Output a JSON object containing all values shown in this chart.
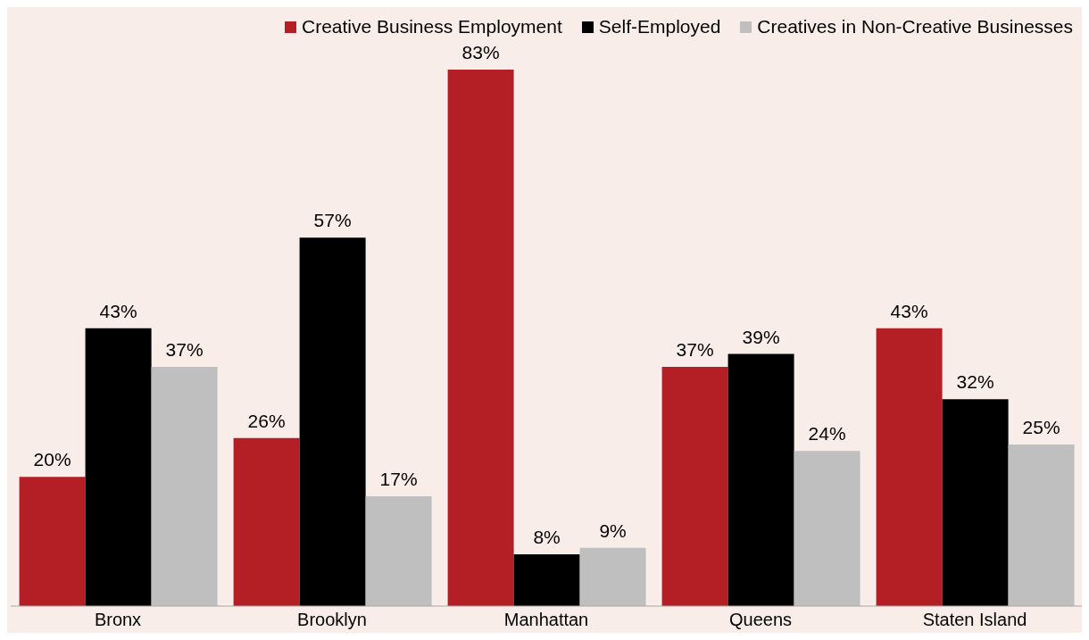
{
  "chart_data": {
    "type": "bar",
    "categories": [
      "Bronx",
      "Brooklyn",
      "Manhattan",
      "Queens",
      "Staten Island"
    ],
    "series": [
      {
        "name": "Creative Business Employment",
        "color": "#b31f24",
        "values": [
          20,
          26,
          83,
          37,
          43
        ],
        "value_labels": [
          "20%",
          "26%",
          "83%",
          "37%",
          "43%"
        ]
      },
      {
        "name": "Self-Employed",
        "color": "#000000",
        "values": [
          43,
          57,
          8,
          39,
          32
        ],
        "value_labels": [
          "43%",
          "57%",
          "8%",
          "39%",
          "32%"
        ]
      },
      {
        "name": "Creatives in Non-Creative Businesses",
        "color": "#bfbfbf",
        "values": [
          37,
          17,
          9,
          24,
          25
        ],
        "value_labels": [
          "37%",
          "17%",
          "9%",
          "24%",
          "25%"
        ]
      }
    ],
    "legend": "top right",
    "grid": false
  }
}
